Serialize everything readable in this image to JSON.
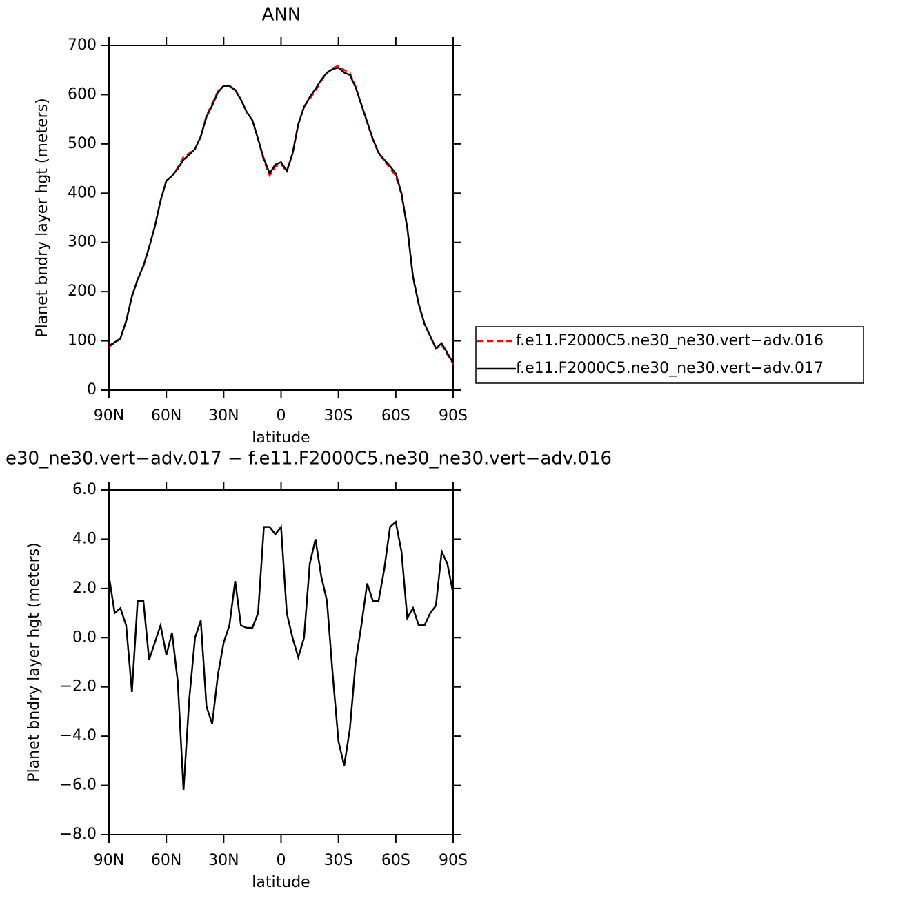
{
  "chart_data": [
    {
      "type": "line",
      "title": "ANN",
      "xlabel": "latitude",
      "ylabel": "Planet bndry layer hgt (meters)",
      "x": [
        90,
        87,
        84,
        81,
        78,
        75,
        72,
        69,
        66,
        63,
        60,
        57,
        54,
        51,
        48,
        45,
        42,
        39,
        36,
        33,
        30,
        27,
        24,
        21,
        18,
        15,
        12,
        9,
        6,
        3,
        0,
        -3,
        -6,
        -9,
        -12,
        -15,
        -18,
        -21,
        -24,
        -27,
        -30,
        -33,
        -36,
        -39,
        -42,
        -45,
        -48,
        -51,
        -54,
        -57,
        -60,
        -63,
        -66,
        -69,
        -72,
        -75,
        -78,
        -81,
        -84,
        -87,
        -90
      ],
      "series": [
        {
          "name": "f.e11.F2000C5.ne30_ne30.vert−adv.016",
          "color": "#ff0000",
          "linestyle": "dashed",
          "values": [
            88,
            96,
            104,
            140,
            192,
            224,
            251,
            291,
            332,
            385,
            426,
            435,
            452,
            474,
            481,
            490,
            514,
            558,
            582,
            607,
            618,
            618,
            608,
            590,
            565,
            548,
            509,
            466,
            436,
            454,
            459,
            444,
            480,
            541,
            575,
            592,
            608,
            628,
            644,
            654,
            659,
            650,
            644,
            616,
            580,
            543,
            509,
            481,
            465,
            451,
            435,
            397,
            329,
            229,
            174,
            134,
            109,
            84,
            92,
            72,
            53
          ]
        },
        {
          "name": "f.e11.F2000C5.ne30_ne30.vert−adv.017",
          "color": "#000000",
          "linestyle": "solid",
          "values": [
            90,
            97,
            105,
            140,
            190,
            225,
            252,
            290,
            332,
            385,
            425,
            435,
            450,
            468,
            478,
            490,
            515,
            555,
            578,
            605,
            618,
            618,
            610,
            590,
            565,
            548,
            510,
            470,
            440,
            458,
            463,
            445,
            480,
            540,
            575,
            595,
            612,
            630,
            645,
            652,
            655,
            645,
            640,
            615,
            580,
            545,
            510,
            482,
            468,
            455,
            440,
            400,
            330,
            230,
            175,
            135,
            110,
            85,
            95,
            75,
            55
          ]
        }
      ],
      "xlim": [
        90,
        -90
      ],
      "ylim": [
        0,
        700
      ],
      "xticks": [
        {
          "value": 90,
          "label": "90N"
        },
        {
          "value": 60,
          "label": "60N"
        },
        {
          "value": 30,
          "label": "30N"
        },
        0,
        {
          "value": -30,
          "label": "30S"
        },
        {
          "value": -60,
          "label": "60S"
        },
        {
          "value": -90,
          "label": "90S"
        }
      ],
      "yticks": [
        0,
        100,
        200,
        300,
        400,
        500,
        600,
        700
      ],
      "legend": "right"
    },
    {
      "type": "line",
      "title": "e30_ne30.vert−adv.017 − f.e11.F2000C5.ne30_ne30.vert−adv.016",
      "xlabel": "latitude",
      "ylabel": "Planet bndry layer hgt (meters)",
      "x": [
        90,
        87,
        84,
        81,
        78,
        75,
        72,
        69,
        66,
        63,
        60,
        57,
        54,
        51,
        48,
        45,
        42,
        39,
        36,
        33,
        30,
        27,
        24,
        21,
        18,
        15,
        12,
        9,
        6,
        3,
        0,
        -3,
        -6,
        -9,
        -12,
        -15,
        -18,
        -21,
        -24,
        -27,
        -30,
        -33,
        -36,
        -39,
        -42,
        -45,
        -48,
        -51,
        -54,
        -57,
        -60,
        -63,
        -66,
        -69,
        -72,
        -75,
        -78,
        -81,
        -84,
        -87,
        -90
      ],
      "series": [
        {
          "color": "#000000",
          "linestyle": "solid",
          "values": [
            2.5,
            1.0,
            1.2,
            0.5,
            -2.2,
            1.5,
            1.5,
            -0.9,
            -0.2,
            0.5,
            -0.7,
            0.2,
            -1.8,
            -6.2,
            -2.5,
            0.0,
            0.7,
            -2.8,
            -3.5,
            -1.5,
            -0.2,
            0.5,
            2.3,
            0.5,
            0.4,
            0.4,
            1.0,
            4.5,
            4.5,
            4.2,
            4.5,
            1.0,
            0.0,
            -0.8,
            0.0,
            3.0,
            4.0,
            2.5,
            1.5,
            -1.5,
            -4.2,
            -5.2,
            -3.7,
            -1.0,
            0.5,
            2.2,
            1.5,
            1.5,
            2.8,
            4.5,
            4.7,
            3.5,
            0.8,
            1.2,
            0.5,
            0.5,
            1.0,
            1.3,
            3.5,
            3.0,
            1.8
          ]
        }
      ],
      "xlim": [
        90,
        -90
      ],
      "ylim": [
        -8,
        6
      ],
      "xticks": [
        {
          "value": 90,
          "label": "90N"
        },
        {
          "value": 60,
          "label": "60N"
        },
        {
          "value": 30,
          "label": "30N"
        },
        0,
        {
          "value": -30,
          "label": "30S"
        },
        {
          "value": -60,
          "label": "60S"
        },
        {
          "value": -90,
          "label": "90S"
        }
      ],
      "yticks": [
        {
          "value": -8,
          "label": "−8.0"
        },
        {
          "value": -6,
          "label": "−6.0"
        },
        {
          "value": -4,
          "label": "−4.0"
        },
        {
          "value": -2,
          "label": "−2.0"
        },
        {
          "value": 0,
          "label": "0.0"
        },
        {
          "value": 2,
          "label": "2.0"
        },
        {
          "value": 4,
          "label": "4.0"
        },
        {
          "value": 6,
          "label": "6.0"
        }
      ]
    }
  ]
}
